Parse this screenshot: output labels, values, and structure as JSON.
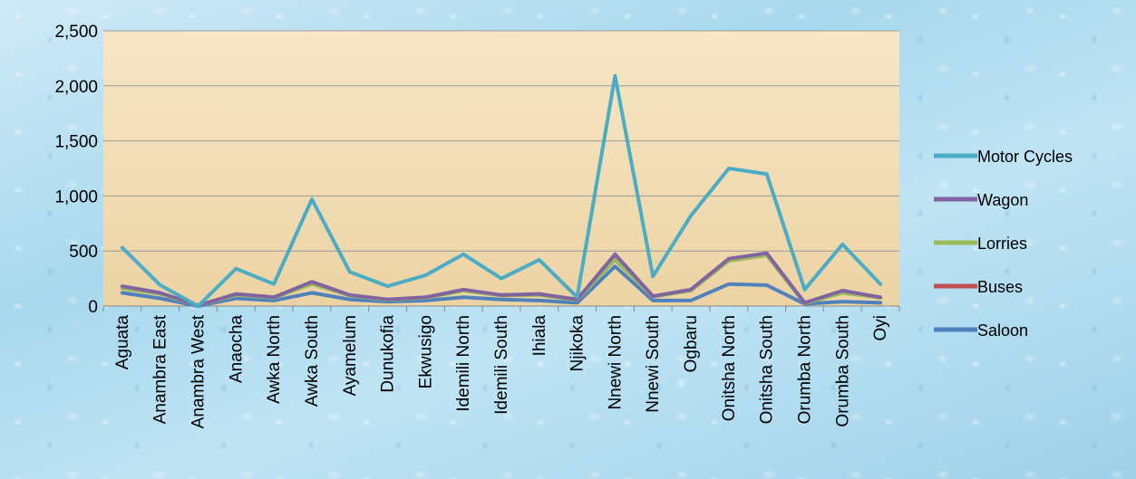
{
  "chart_data": {
    "type": "line",
    "title": "",
    "xlabel": "",
    "ylabel": "",
    "ylim": [
      0,
      2500
    ],
    "yticks": [
      "0",
      "500",
      "1,000",
      "1,500",
      "2,000",
      "2,500"
    ],
    "grid": true,
    "legend_position": "right",
    "categories": [
      "Aguata",
      "Anambra East",
      "Anambra West",
      "Anaocha",
      "Awka North",
      "Awka South",
      "Ayamelum",
      "Dunukofia",
      "Ekwusigo",
      "Idemili North",
      "Idemili South",
      "Ihiala",
      "Njikoka",
      "Nnewi North",
      "Nnewi South",
      "Ogbaru",
      "Onitsha North",
      "Onitsha South",
      "Orumba North",
      "Orumba South",
      "Oyi"
    ],
    "series": [
      {
        "name": "Motor Cycles",
        "color": "#4bacc6",
        "values": [
          530,
          190,
          0,
          340,
          200,
          970,
          310,
          180,
          280,
          470,
          250,
          420,
          80,
          2090,
          270,
          820,
          1250,
          1200,
          150,
          560,
          200
        ]
      },
      {
        "name": "Wagon",
        "color": "#8064a2",
        "values": [
          180,
          120,
          5,
          110,
          80,
          220,
          100,
          60,
          80,
          150,
          100,
          110,
          60,
          470,
          90,
          150,
          430,
          480,
          30,
          140,
          80
        ]
      },
      {
        "name": "Lorries",
        "color": "#9bbb59",
        "values": [
          160,
          110,
          5,
          100,
          75,
          200,
          95,
          55,
          75,
          140,
          95,
          100,
          55,
          420,
          85,
          140,
          410,
          460,
          25,
          120,
          75
        ]
      },
      {
        "name": "Buses",
        "color": "#c0504d",
        "values": [
          165,
          115,
          5,
          105,
          78,
          210,
          98,
          58,
          78,
          145,
          98,
          105,
          58,
          440,
          88,
          145,
          420,
          470,
          28,
          130,
          78
        ]
      },
      {
        "name": "Saloon",
        "color": "#4f81bd",
        "values": [
          120,
          70,
          0,
          70,
          50,
          120,
          60,
          40,
          50,
          80,
          60,
          50,
          30,
          360,
          50,
          50,
          200,
          190,
          20,
          40,
          30
        ]
      }
    ]
  }
}
